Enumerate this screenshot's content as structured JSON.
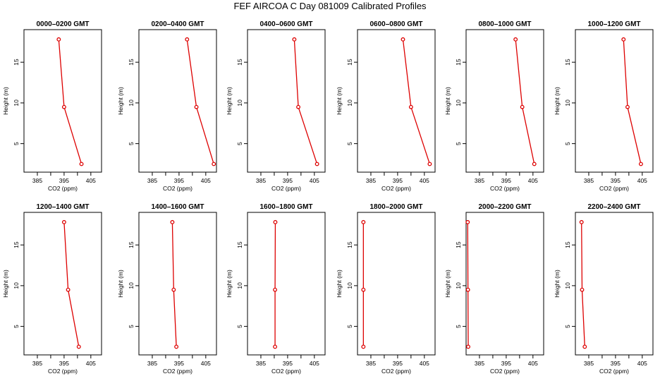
{
  "figure": {
    "title": "FEF AIRCOA C  Day 081009  Calibrated Profiles",
    "xlabel": "CO2 (ppm)",
    "ylabel": "Height (m)",
    "colors": {
      "series": "#dd0000",
      "axes": "#000000",
      "background": "#ffffff"
    }
  },
  "chart_data": [
    {
      "type": "line",
      "title": "0000–0200 GMT",
      "xlabel": "CO2 (ppm)",
      "ylabel": "Height (m)",
      "xlim": [
        380,
        409
      ],
      "ylim": [
        1.5,
        19
      ],
      "xticks": [
        385,
        390,
        395,
        400,
        405
      ],
      "xtick_labels": [
        "385",
        "395",
        "405"
      ],
      "yticks": [
        5,
        10,
        15
      ],
      "series": [
        {
          "name": "CO2 profile",
          "x": [
            401.5,
            395.0,
            393.0
          ],
          "y": [
            2.5,
            9.5,
            17.8
          ]
        }
      ]
    },
    {
      "type": "line",
      "title": "0200–0400 GMT",
      "xlabel": "CO2 (ppm)",
      "ylabel": "Height (m)",
      "xlim": [
        380,
        409
      ],
      "ylim": [
        1.5,
        19
      ],
      "xticks": [
        385,
        390,
        395,
        400,
        405
      ],
      "xtick_labels": [
        "385",
        "395",
        "405"
      ],
      "yticks": [
        5,
        10,
        15
      ],
      "series": [
        {
          "name": "CO2 profile",
          "x": [
            408.0,
            401.5,
            398.0
          ],
          "y": [
            2.5,
            9.5,
            17.8
          ]
        }
      ]
    },
    {
      "type": "line",
      "title": "0400–0600 GMT",
      "xlabel": "CO2 (ppm)",
      "ylabel": "Height (m)",
      "xlim": [
        380,
        409
      ],
      "ylim": [
        1.5,
        19
      ],
      "xticks": [
        385,
        390,
        395,
        400,
        405
      ],
      "xtick_labels": [
        "385",
        "395",
        "405"
      ],
      "yticks": [
        5,
        10,
        15
      ],
      "series": [
        {
          "name": "CO2 profile",
          "x": [
            406.0,
            399.0,
            397.5
          ],
          "y": [
            2.5,
            9.5,
            17.8
          ]
        }
      ]
    },
    {
      "type": "line",
      "title": "0600–0800 GMT",
      "xlabel": "CO2 (ppm)",
      "ylabel": "Height (m)",
      "xlim": [
        380,
        409
      ],
      "ylim": [
        1.5,
        19
      ],
      "xticks": [
        385,
        390,
        395,
        400,
        405
      ],
      "xtick_labels": [
        "385",
        "395",
        "405"
      ],
      "yticks": [
        5,
        10,
        15
      ],
      "series": [
        {
          "name": "CO2 profile",
          "x": [
            407.0,
            400.0,
            397.0
          ],
          "y": [
            2.5,
            9.5,
            17.8
          ]
        }
      ]
    },
    {
      "type": "line",
      "title": "0800–1000 GMT",
      "xlabel": "CO2 (ppm)",
      "ylabel": "Height (m)",
      "xlim": [
        380,
        409
      ],
      "ylim": [
        1.5,
        19
      ],
      "xticks": [
        385,
        390,
        395,
        400,
        405
      ],
      "xtick_labels": [
        "385",
        "395",
        "405"
      ],
      "yticks": [
        5,
        10,
        15
      ],
      "series": [
        {
          "name": "CO2 profile",
          "x": [
            405.5,
            401.0,
            398.5
          ],
          "y": [
            2.5,
            9.5,
            17.8
          ]
        }
      ]
    },
    {
      "type": "line",
      "title": "1000–1200 GMT",
      "xlabel": "CO2 (ppm)",
      "ylabel": "Height (m)",
      "xlim": [
        380,
        409
      ],
      "ylim": [
        1.5,
        19
      ],
      "xticks": [
        385,
        390,
        395,
        400,
        405
      ],
      "xtick_labels": [
        "385",
        "395",
        "405"
      ],
      "yticks": [
        5,
        10,
        15
      ],
      "series": [
        {
          "name": "CO2 profile",
          "x": [
            404.5,
            399.5,
            398.0
          ],
          "y": [
            2.5,
            9.5,
            17.8
          ]
        }
      ]
    },
    {
      "type": "line",
      "title": "1200–1400 GMT",
      "xlabel": "CO2 (ppm)",
      "ylabel": "Height (m)",
      "xlim": [
        380,
        409
      ],
      "ylim": [
        1.5,
        19
      ],
      "xticks": [
        385,
        390,
        395,
        400,
        405
      ],
      "xtick_labels": [
        "385",
        "395",
        "405"
      ],
      "yticks": [
        5,
        10,
        15
      ],
      "series": [
        {
          "name": "CO2 profile",
          "x": [
            400.5,
            396.5,
            395.0
          ],
          "y": [
            2.5,
            9.5,
            17.8
          ]
        }
      ]
    },
    {
      "type": "line",
      "title": "1400–1600 GMT",
      "xlabel": "CO2 (ppm)",
      "ylabel": "Height (m)",
      "xlim": [
        380,
        409
      ],
      "ylim": [
        1.5,
        19
      ],
      "xticks": [
        385,
        390,
        395,
        400,
        405
      ],
      "xtick_labels": [
        "385",
        "395",
        "405"
      ],
      "yticks": [
        5,
        10,
        15
      ],
      "series": [
        {
          "name": "CO2 profile",
          "x": [
            394.0,
            393.0,
            392.5
          ],
          "y": [
            2.5,
            9.5,
            17.8
          ]
        }
      ]
    },
    {
      "type": "line",
      "title": "1600–1800 GMT",
      "xlabel": "CO2 (ppm)",
      "ylabel": "Height (m)",
      "xlim": [
        380,
        409
      ],
      "ylim": [
        1.5,
        19
      ],
      "xticks": [
        385,
        390,
        395,
        400,
        405
      ],
      "xtick_labels": [
        "385",
        "395",
        "405"
      ],
      "yticks": [
        5,
        10,
        15
      ],
      "series": [
        {
          "name": "CO2 profile",
          "x": [
            390.3,
            390.3,
            390.4
          ],
          "y": [
            2.5,
            9.5,
            17.8
          ]
        }
      ]
    },
    {
      "type": "line",
      "title": "1800–2000 GMT",
      "xlabel": "CO2 (ppm)",
      "ylabel": "Height (m)",
      "xlim": [
        380,
        409
      ],
      "ylim": [
        1.5,
        19
      ],
      "xticks": [
        385,
        390,
        395,
        400,
        405
      ],
      "xtick_labels": [
        "385",
        "395",
        "405"
      ],
      "yticks": [
        5,
        10,
        15
      ],
      "series": [
        {
          "name": "CO2 profile",
          "x": [
            382.2,
            382.2,
            382.2
          ],
          "y": [
            2.5,
            9.5,
            17.8
          ]
        }
      ]
    },
    {
      "type": "line",
      "title": "2000–2200 GMT",
      "xlabel": "CO2 (ppm)",
      "ylabel": "Height (m)",
      "xlim": [
        380,
        409
      ],
      "ylim": [
        1.5,
        19
      ],
      "xticks": [
        385,
        390,
        395,
        400,
        405
      ],
      "xtick_labels": [
        "385",
        "395",
        "405"
      ],
      "yticks": [
        5,
        10,
        15
      ],
      "series": [
        {
          "name": "CO2 profile",
          "x": [
            380.8,
            380.7,
            380.6
          ],
          "y": [
            2.5,
            9.5,
            17.8
          ]
        }
      ]
    },
    {
      "type": "line",
      "title": "2200–2400 GMT",
      "xlabel": "CO2 (ppm)",
      "ylabel": "Height (m)",
      "xlim": [
        380,
        409
      ],
      "ylim": [
        1.5,
        19
      ],
      "xticks": [
        385,
        390,
        395,
        400,
        405
      ],
      "xtick_labels": [
        "385",
        "395",
        "405"
      ],
      "yticks": [
        5,
        10,
        15
      ],
      "series": [
        {
          "name": "CO2 profile",
          "x": [
            383.5,
            382.5,
            382.3
          ],
          "y": [
            2.5,
            9.5,
            17.8
          ]
        }
      ]
    }
  ]
}
